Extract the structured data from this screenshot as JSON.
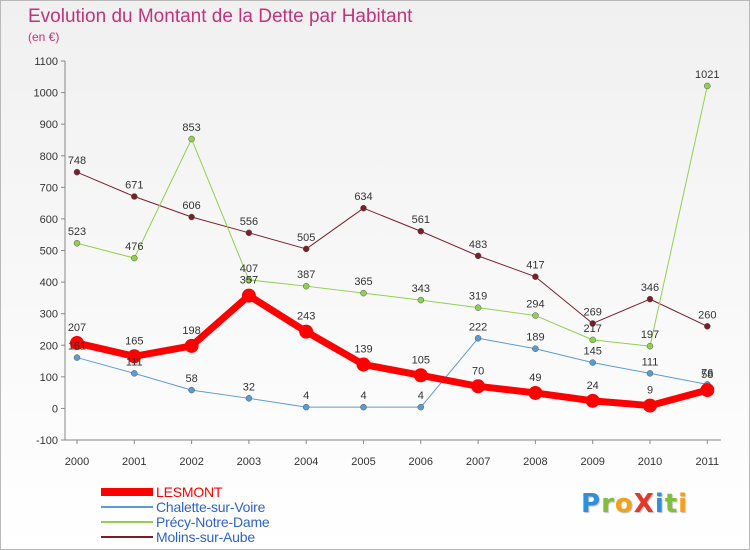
{
  "title": "Evolution du Montant de la Dette par Habitant",
  "subtitle": "(en €)",
  "logo": {
    "text": "ProXiti",
    "letters": [
      {
        "ch": "P",
        "color": "#2f8fd8"
      },
      {
        "ch": "r",
        "color": "#7fbf3a"
      },
      {
        "ch": "o",
        "color": "#f2a11d"
      },
      {
        "ch": "X",
        "color": "#e2372b"
      },
      {
        "ch": "i",
        "color": "#2f8fd8"
      },
      {
        "ch": "t",
        "color": "#7fbf3a"
      },
      {
        "ch": "i",
        "color": "#f2a11d"
      }
    ]
  },
  "chart_data": {
    "type": "line",
    "title": "Evolution du Montant de la Dette par Habitant",
    "subtitle": "(en €)",
    "x": [
      "2000",
      "2001",
      "2002",
      "2003",
      "2004",
      "2005",
      "2006",
      "2007",
      "2008",
      "2009",
      "2010",
      "2011"
    ],
    "ylim": [
      -100,
      1100
    ],
    "yticks": [
      -100,
      0,
      100,
      200,
      300,
      400,
      500,
      600,
      700,
      800,
      900,
      1000,
      1100
    ],
    "grid": false,
    "legend_position": "bottom-left",
    "series": [
      {
        "name": "Molins-sur-Aube",
        "color": "#7a1f28",
        "width": 1,
        "values": [
          748,
          671,
          606,
          556,
          505,
          634,
          561,
          483,
          417,
          269,
          346,
          260
        ]
      },
      {
        "name": "Précy-Notre-Dame",
        "color": "#8fd14f",
        "width": 1,
        "values": [
          523,
          476,
          853,
          407,
          387,
          365,
          343,
          319,
          294,
          217,
          197,
          1021
        ]
      },
      {
        "name": "Chalette-sur-Voire",
        "color": "#5b9bd5",
        "width": 1,
        "values": [
          161,
          111,
          58,
          32,
          4,
          4,
          4,
          222,
          189,
          145,
          111,
          76
        ]
      },
      {
        "name": "LESMONT",
        "color": "#ff0000",
        "width": 7,
        "values": [
          207,
          165,
          198,
          357,
          243,
          139,
          105,
          70,
          49,
          24,
          9,
          58
        ]
      }
    ],
    "legend": [
      "LESMONT",
      "Chalette-sur-Voire",
      "Précy-Notre-Dame",
      "Molins-sur-Aube"
    ]
  }
}
